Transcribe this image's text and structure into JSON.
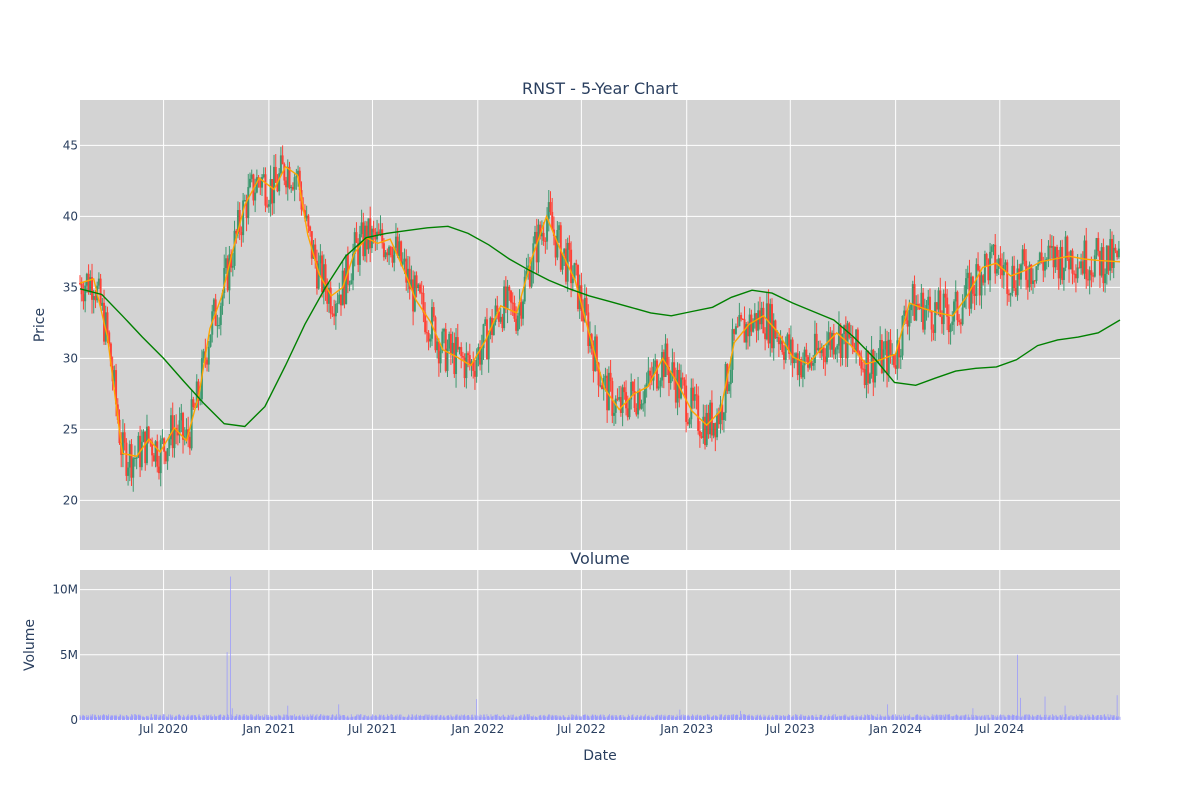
{
  "chart_data": [
    {
      "type": "candlestick",
      "title": "RNST - 5-Year Chart",
      "xlabel": "",
      "ylabel": "Price",
      "ylim": [
        16.5,
        48.2
      ],
      "yticks": [
        20,
        25,
        30,
        35,
        40,
        45
      ],
      "xlim": [
        "2020-02-06",
        "2025-01-27"
      ],
      "grid": true,
      "increasing_color": "#3d9970",
      "decreasing_color": "#ff4136",
      "overlay_series": [
        {
          "color": "#ffa500",
          "x": [
            "2020-02-06",
            "2020-03-01",
            "2020-03-25",
            "2020-04-20",
            "2020-05-15",
            "2020-06-05",
            "2020-06-25",
            "2020-07-20",
            "2020-08-10",
            "2020-09-01",
            "2020-09-20",
            "2020-10-10",
            "2020-10-30",
            "2020-11-20",
            "2020-12-15",
            "2021-01-10",
            "2021-01-30",
            "2021-02-20",
            "2021-03-10",
            "2021-03-30",
            "2021-04-20",
            "2021-05-10",
            "2021-05-30",
            "2021-06-20",
            "2021-07-10",
            "2021-08-01",
            "2021-08-25",
            "2021-09-15",
            "2021-10-10",
            "2021-11-01",
            "2021-11-25",
            "2021-12-20",
            "2022-01-15",
            "2022-02-10",
            "2022-03-10",
            "2022-04-05",
            "2022-05-01",
            "2022-05-25",
            "2022-06-20",
            "2022-07-15",
            "2022-08-10",
            "2022-09-05",
            "2022-10-01",
            "2022-10-25",
            "2022-11-20",
            "2022-12-15",
            "2023-01-10",
            "2023-02-05",
            "2023-03-01",
            "2023-03-25",
            "2023-04-20",
            "2023-05-15",
            "2023-06-10",
            "2023-07-05",
            "2023-08-01",
            "2023-08-25",
            "2023-09-20",
            "2023-10-15",
            "2023-11-10",
            "2023-12-05",
            "2024-01-01",
            "2024-01-25",
            "2024-02-20",
            "2024-03-15",
            "2024-04-10",
            "2024-05-05",
            "2024-06-01",
            "2024-06-25",
            "2024-07-20",
            "2024-08-15",
            "2024-09-10",
            "2024-10-05",
            "2024-10-30",
            "2024-11-25",
            "2024-12-20",
            "2025-01-27"
          ],
          "values": [
            35.3,
            35.6,
            31.5,
            23.3,
            23.1,
            24.3,
            23.4,
            25.1,
            24.2,
            27.5,
            32.1,
            34.3,
            37.6,
            40.8,
            42.7,
            41.9,
            43.5,
            42.9,
            38.7,
            35.9,
            34.4,
            35.0,
            37.4,
            38.5,
            38.1,
            38.4,
            36.2,
            34.1,
            32.6,
            30.6,
            30.1,
            29.5,
            31.3,
            33.7,
            33.2,
            37.0,
            40.0,
            37.7,
            35.5,
            31.7,
            27.9,
            26.4,
            27.5,
            28.0,
            30.0,
            28.3,
            26.3,
            25.3,
            26.3,
            31.1,
            32.4,
            33.0,
            31.8,
            30.1,
            29.6,
            30.7,
            31.8,
            30.9,
            29.6,
            29.9,
            30.3,
            33.9,
            33.5,
            33.2,
            33.0,
            34.4,
            36.4,
            36.7,
            35.8,
            36.2,
            36.8,
            37.0,
            37.2,
            37.0,
            36.9,
            36.8
          ]
        },
        {
          "color": "#008000",
          "x": [
            "2020-02-06",
            "2020-03-15",
            "2020-04-20",
            "2020-05-25",
            "2020-07-01",
            "2020-08-05",
            "2020-09-10",
            "2020-10-15",
            "2020-11-20",
            "2020-12-25",
            "2021-01-30",
            "2021-03-05",
            "2021-04-10",
            "2021-05-15",
            "2021-06-20",
            "2021-07-25",
            "2021-08-30",
            "2021-10-05",
            "2021-11-10",
            "2021-12-15",
            "2022-01-20",
            "2022-02-25",
            "2022-04-01",
            "2022-05-05",
            "2022-06-10",
            "2022-07-15",
            "2022-08-20",
            "2022-09-25",
            "2022-10-30",
            "2022-12-05",
            "2023-01-10",
            "2023-02-15",
            "2023-03-20",
            "2023-04-25",
            "2023-05-30",
            "2023-07-05",
            "2023-08-10",
            "2023-09-15",
            "2023-10-20",
            "2023-11-25",
            "2023-12-30",
            "2024-02-05",
            "2024-03-10",
            "2024-04-15",
            "2024-05-20",
            "2024-06-25",
            "2024-07-30",
            "2024-09-05",
            "2024-10-10",
            "2024-11-15",
            "2024-12-20",
            "2025-01-27"
          ],
          "values": [
            34.9,
            34.5,
            33.0,
            31.5,
            30.0,
            28.4,
            26.8,
            25.4,
            25.2,
            26.6,
            29.5,
            32.4,
            35.0,
            37.2,
            38.5,
            38.8,
            39.0,
            39.2,
            39.3,
            38.8,
            38.0,
            37.0,
            36.2,
            35.5,
            34.9,
            34.4,
            34.0,
            33.6,
            33.2,
            33.0,
            33.3,
            33.6,
            34.3,
            34.8,
            34.6,
            33.9,
            33.3,
            32.7,
            31.5,
            30.0,
            28.3,
            28.1,
            28.6,
            29.1,
            29.3,
            29.4,
            29.9,
            30.9,
            31.3,
            31.5,
            31.8,
            32.7
          ]
        }
      ]
    },
    {
      "type": "bar",
      "title": "Volume",
      "xlabel": "Date",
      "ylabel": "Volume",
      "ylim": [
        0,
        11500000
      ],
      "yticks": [
        0,
        5000000,
        10000000
      ],
      "ytick_labels": [
        "0",
        "5M",
        "10M"
      ],
      "xlim": [
        "2020-02-06",
        "2025-01-27"
      ],
      "xticks": [
        "2020-07-01",
        "2021-01-01",
        "2021-07-01",
        "2022-01-01",
        "2022-07-01",
        "2023-01-01",
        "2023-07-01",
        "2024-01-01",
        "2024-07-01"
      ],
      "xtick_labels": [
        "Jul 2020",
        "Jan 2021",
        "Jul 2021",
        "Jan 2022",
        "Jul 2022",
        "Jan 2023",
        "Jul 2023",
        "Jan 2024",
        "Jul 2024"
      ],
      "bar_color": "#9696ff",
      "baseline_volume": 300000,
      "spikes": [
        {
          "x": "2020-10-26",
          "value": 11000000
        },
        {
          "x": "2020-10-20",
          "value": 5200000
        },
        {
          "x": "2020-10-29",
          "value": 900000
        },
        {
          "x": "2021-02-03",
          "value": 1100000
        },
        {
          "x": "2021-05-03",
          "value": 1200000
        },
        {
          "x": "2021-12-30",
          "value": 1600000
        },
        {
          "x": "2022-12-20",
          "value": 800000
        },
        {
          "x": "2023-04-05",
          "value": 700000
        },
        {
          "x": "2023-12-18",
          "value": 1200000
        },
        {
          "x": "2024-05-15",
          "value": 900000
        },
        {
          "x": "2024-08-01",
          "value": 5000000
        },
        {
          "x": "2024-08-06",
          "value": 1700000
        },
        {
          "x": "2024-09-18",
          "value": 1800000
        },
        {
          "x": "2024-10-23",
          "value": 1100000
        },
        {
          "x": "2025-01-22",
          "value": 1900000
        }
      ]
    }
  ]
}
